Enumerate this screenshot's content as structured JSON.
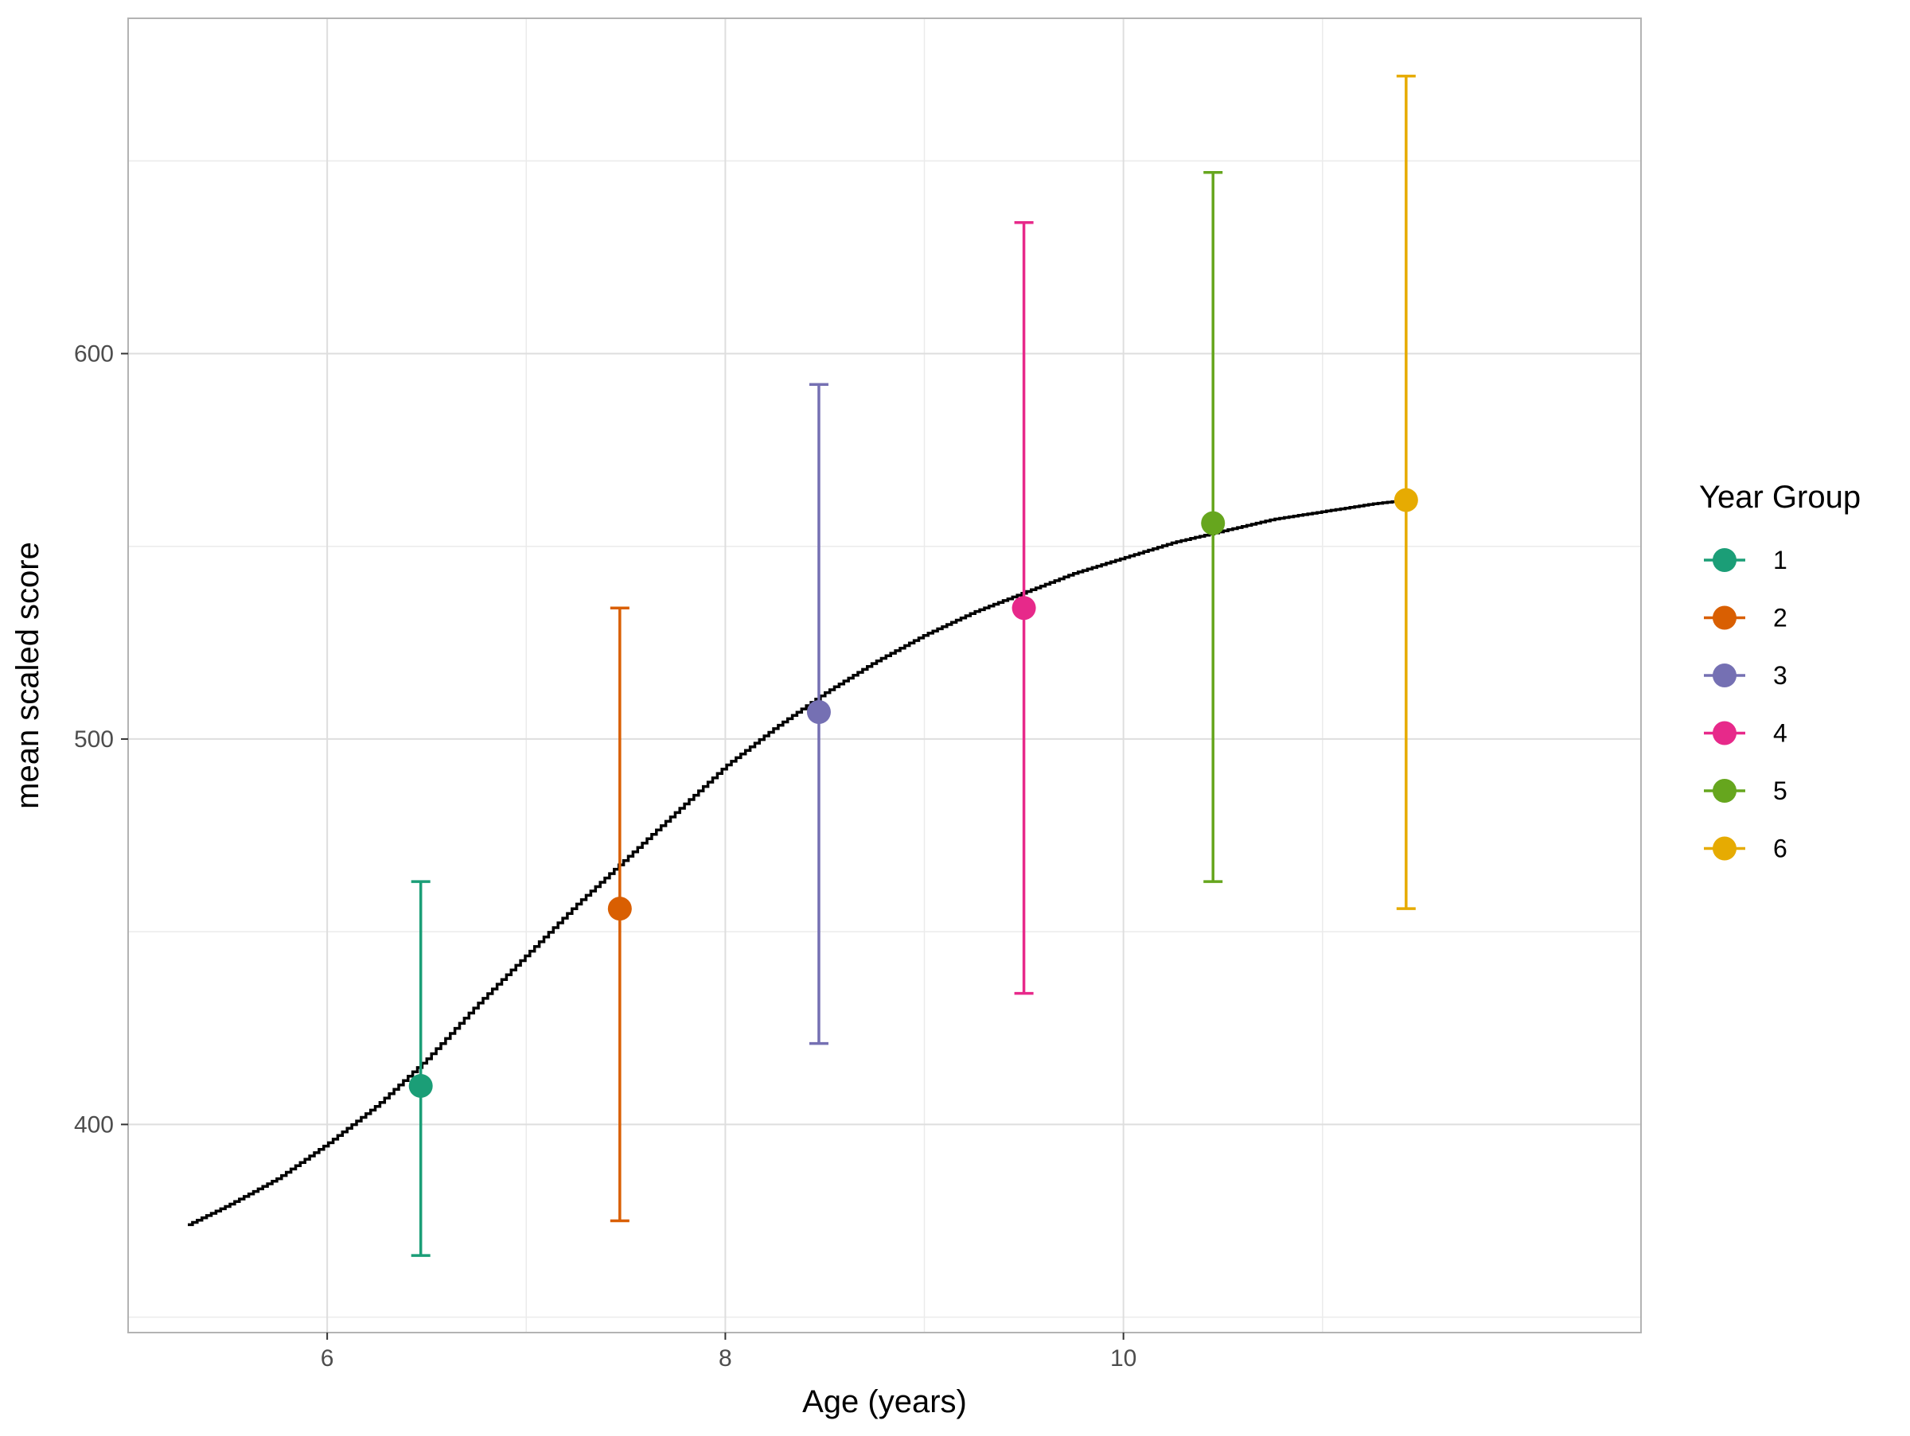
{
  "chart_data": {
    "type": "scatter",
    "title": "",
    "xlabel": "Age (years)",
    "ylabel": "mean scaled score",
    "xlim": [
      5,
      12.6
    ],
    "ylim": [
      346,
      687
    ],
    "x_ticks": [
      6,
      8,
      10
    ],
    "y_ticks": [
      400,
      500,
      600
    ],
    "x_tick_labels": [
      "6",
      "8",
      "10"
    ],
    "y_tick_labels": [
      "400",
      "500",
      "600"
    ],
    "grid": true,
    "legend": {
      "title": "Year Group",
      "position": "right"
    },
    "series": [
      {
        "name": "1",
        "color": "#1B9E77",
        "x": 6.47,
        "y": 410,
        "ymin": 366,
        "ymax": 463
      },
      {
        "name": "2",
        "color": "#D95F02",
        "x": 7.47,
        "y": 456,
        "ymin": 375,
        "ymax": 534
      },
      {
        "name": "3",
        "color": "#7570B3",
        "x": 8.47,
        "y": 507,
        "ymin": 421,
        "ymax": 592
      },
      {
        "name": "4",
        "color": "#E7298A",
        "x": 9.5,
        "y": 534,
        "ymin": 434,
        "ymax": 634
      },
      {
        "name": "5",
        "color": "#66A61E",
        "x": 10.45,
        "y": 556,
        "ymin": 463,
        "ymax": 647
      },
      {
        "name": "6",
        "color": "#E6AB02",
        "x": 11.42,
        "y": 562,
        "ymin": 456,
        "ymax": 672
      }
    ],
    "fitted_curve": {
      "color": "#000000",
      "points": [
        [
          5.3,
          374
        ],
        [
          5.5,
          379
        ],
        [
          5.75,
          386
        ],
        [
          6.0,
          395
        ],
        [
          6.25,
          405
        ],
        [
          6.5,
          417
        ],
        [
          6.75,
          431
        ],
        [
          7.0,
          444
        ],
        [
          7.25,
          457
        ],
        [
          7.5,
          469
        ],
        [
          7.75,
          481
        ],
        [
          8.0,
          493
        ],
        [
          8.25,
          503
        ],
        [
          8.5,
          512
        ],
        [
          8.75,
          520
        ],
        [
          9.0,
          527
        ],
        [
          9.25,
          533
        ],
        [
          9.5,
          538
        ],
        [
          9.75,
          543
        ],
        [
          10.0,
          547
        ],
        [
          10.25,
          551
        ],
        [
          10.5,
          554
        ],
        [
          10.75,
          557
        ],
        [
          11.0,
          559
        ],
        [
          11.25,
          561
        ],
        [
          11.42,
          562
        ]
      ]
    }
  }
}
